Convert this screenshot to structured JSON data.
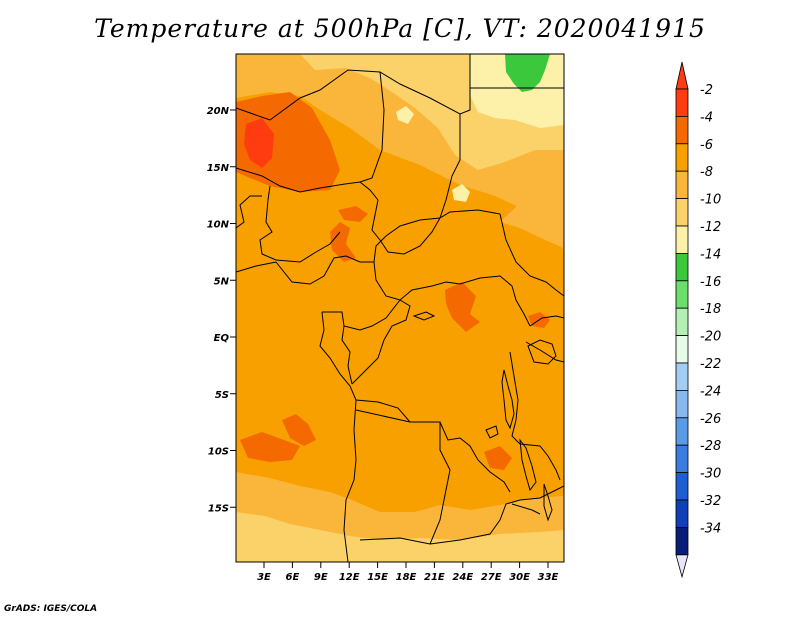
{
  "title": "Temperature at 500hPa [C], VT: 2020041915",
  "credit": "GrADS: IGES/COLA",
  "map": {
    "lat_ticks": [
      "20N",
      "15N",
      "10N",
      "5N",
      "EQ",
      "5S",
      "10S",
      "15S"
    ],
    "lon_ticks": [
      "3E",
      "6E",
      "9E",
      "12E",
      "15E",
      "18E",
      "21E",
      "24E",
      "27E",
      "30E",
      "33E"
    ]
  },
  "colorbar": {
    "labels": [
      "-2",
      "-4",
      "-6",
      "-8",
      "-10",
      "-12",
      "-14",
      "-16",
      "-18",
      "-20",
      "-22",
      "-24",
      "-26",
      "-28",
      "-30",
      "-32",
      "-34"
    ],
    "colors": [
      "#ff3c10",
      "#f56a00",
      "#f8a000",
      "#f9b63a",
      "#fbd26a",
      "#fdf0a8",
      "#3cc83c",
      "#6cde6c",
      "#b4f0b4",
      "#e6fbe8",
      "#a4cdf4",
      "#88b9ee",
      "#5a9be8",
      "#3a7ce0",
      "#1f5ed0",
      "#0f40b8",
      "#081c78"
    ],
    "top_arrow_color": "#ff3c10",
    "bottom_arrow_color": "#e6e6fa"
  },
  "field_colors": {
    "base": "#f8a000",
    "cooler": "#f9b63a",
    "cool": "#fbd26a",
    "coolest": "#fdf0a8",
    "warm": "#f56a00",
    "warmest": "#ff3c10",
    "green": "#3cc83c"
  }
}
